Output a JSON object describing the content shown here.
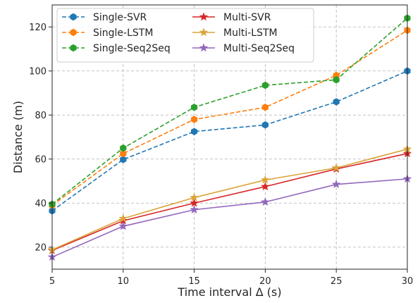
{
  "chart_data": {
    "type": "line",
    "xlabel": "Time interval Δ (s)",
    "ylabel": "Distance (m)",
    "x": [
      5,
      10,
      15,
      20,
      25,
      30
    ],
    "xlim": [
      5,
      30
    ],
    "ylim": [
      10,
      130
    ],
    "xticks": [
      "5",
      "10",
      "15",
      "20",
      "25",
      "30"
    ],
    "yticks": [
      "20",
      "40",
      "60",
      "80",
      "100",
      "120"
    ],
    "grid": true,
    "legend_position": "top-left",
    "series": [
      {
        "name": "Single-SVR",
        "values": [
          36.5,
          59.8,
          72.5,
          75.5,
          86.0,
          100.0
        ],
        "color": "#1f77b4",
        "dash": "dashed",
        "marker": "hexagon"
      },
      {
        "name": "Single-LSTM",
        "values": [
          39.0,
          62.5,
          78.0,
          83.5,
          98.0,
          118.5
        ],
        "color": "#ff7f0e",
        "dash": "dashed",
        "marker": "hexagon"
      },
      {
        "name": "Single-Seq2Seq",
        "values": [
          39.5,
          65.0,
          83.5,
          93.5,
          96.0,
          124.0
        ],
        "color": "#2ca02c",
        "dash": "dashed",
        "marker": "hexagon"
      },
      {
        "name": "Multi-SVR",
        "values": [
          18.5,
          32.0,
          40.0,
          47.5,
          55.5,
          62.5
        ],
        "color": "#d62728",
        "dash": "solid",
        "marker": "star"
      },
      {
        "name": "Multi-LSTM",
        "values": [
          18.8,
          33.0,
          42.5,
          50.5,
          56.0,
          64.5
        ],
        "color": "#dba53a",
        "dash": "solid",
        "marker": "star"
      },
      {
        "name": "Multi-Seq2Seq",
        "values": [
          15.5,
          29.5,
          37.0,
          40.5,
          48.5,
          51.0
        ],
        "color": "#9467bd",
        "dash": "solid",
        "marker": "star"
      }
    ]
  }
}
